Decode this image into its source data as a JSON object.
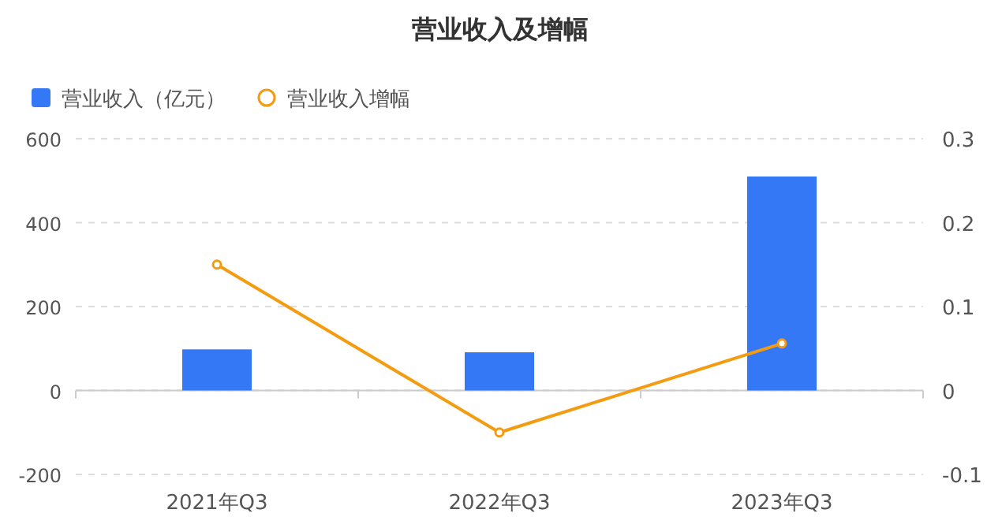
{
  "chart_data": {
    "type": "bar",
    "title": "营业收入及增幅",
    "categories": [
      "2021年Q3",
      "2022年Q3",
      "2023年Q3"
    ],
    "series": [
      {
        "name": "营业收入（亿元）",
        "color": "#3478f6",
        "values": [
          98,
          91,
          510
        ]
      },
      {
        "name": "营业收入增幅",
        "type": "line",
        "axis": "y2",
        "color": "#f39c12",
        "marker": "circle",
        "values": [
          0.15,
          -0.05,
          0.056
        ]
      }
    ],
    "ylim": [
      -200,
      600
    ],
    "yticks": [
      -200,
      0,
      200,
      400,
      600
    ],
    "y2lim": [
      -0.1,
      0.3
    ],
    "y2ticks": [
      -0.1,
      0,
      0.1,
      0.2,
      0.3
    ],
    "grid": "y",
    "legend": "top left"
  }
}
